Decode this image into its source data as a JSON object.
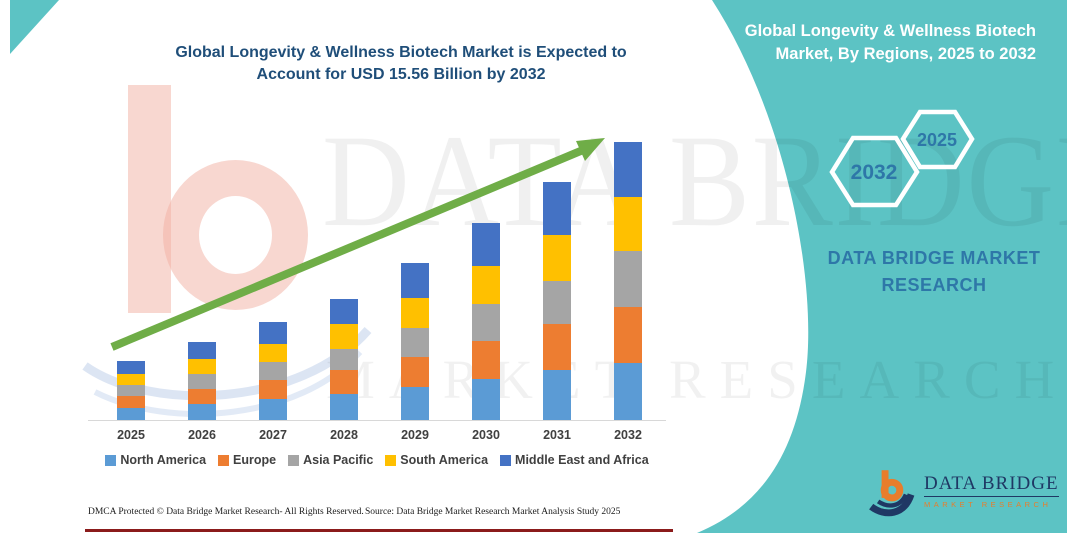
{
  "colors": {
    "teal": "#5CC3C4",
    "navy": "#1F4E79",
    "green": "#6FAD47",
    "steel": "#2E77A8",
    "salmon": "#F2AFA1",
    "swoosh": "#BFD0EA",
    "axis": "#D8D8D8",
    "label": "#404040",
    "redline": "#8B1B1B",
    "logoNavy": "#1F3864",
    "logoOrange": "#E87D2B"
  },
  "header": {
    "title_line1": "Global Longevity & Wellness Biotech Market is Expected to",
    "title_line2": "Account for USD 15.56 Billion by 2032"
  },
  "side_panel": {
    "title_line1": "Global Longevity & Wellness Biotech",
    "title_line2": "Market, By Regions, 2025 to 2032",
    "hexagons": [
      {
        "label": "2032"
      },
      {
        "label": "2025"
      }
    ],
    "brand_line1": "DATA BRIDGE MARKET",
    "brand_line2": "RESEARCH"
  },
  "watermark": {
    "brand_text": "DATA BRIDGE",
    "brand_subtext": "MARKET RESEARCH"
  },
  "chart_data": {
    "type": "bar",
    "stacked": true,
    "title": "Global Longevity & Wellness Biotech Market, By Regions, 2025 to 2032",
    "unit": "USD Billion",
    "categories": [
      "2025",
      "2026",
      "2027",
      "2028",
      "2029",
      "2030",
      "2031",
      "2032"
    ],
    "series": [
      {
        "name": "North America",
        "color": "#5B9BD5",
        "values": [
          0.7,
          0.92,
          1.16,
          1.43,
          1.85,
          2.32,
          2.79,
          3.19
        ]
      },
      {
        "name": "Europe",
        "color": "#ED7D31",
        "values": [
          0.64,
          0.84,
          1.06,
          1.39,
          1.7,
          2.13,
          2.57,
          3.13
        ]
      },
      {
        "name": "Asia Pacific",
        "color": "#A5A5A5",
        "values": [
          0.6,
          0.79,
          1.0,
          1.17,
          1.6,
          2.02,
          2.43,
          3.13
        ]
      },
      {
        "name": "South America",
        "color": "#FFC000",
        "values": [
          0.63,
          0.84,
          1.06,
          1.38,
          1.7,
          2.14,
          2.58,
          3.02
        ]
      },
      {
        "name": "Middle East and Africa",
        "color": "#4472C4",
        "values": [
          0.73,
          0.96,
          1.22,
          1.43,
          1.95,
          2.44,
          2.93,
          3.09
        ]
      }
    ],
    "totals_estimated": [
      3.3,
      4.35,
      5.5,
      6.8,
      8.8,
      11.05,
      13.3,
      15.56
    ],
    "stated_value_2032": "USD 15.56 Billion",
    "ylim": [
      0,
      16
    ],
    "gridlines": false,
    "legend_position": "bottom",
    "annotations": [
      "rising trend arrow from 2025 to 2032"
    ]
  },
  "footer": {
    "left": "DMCA Protected © Data Bridge Market Research-  All Rights Reserved.",
    "source": "Source: Data Bridge Market Research  Market Analysis Study 2025"
  },
  "brand_logo": {
    "name": "DATA BRIDGE",
    "subtitle": "MARKET RESEARCH"
  }
}
